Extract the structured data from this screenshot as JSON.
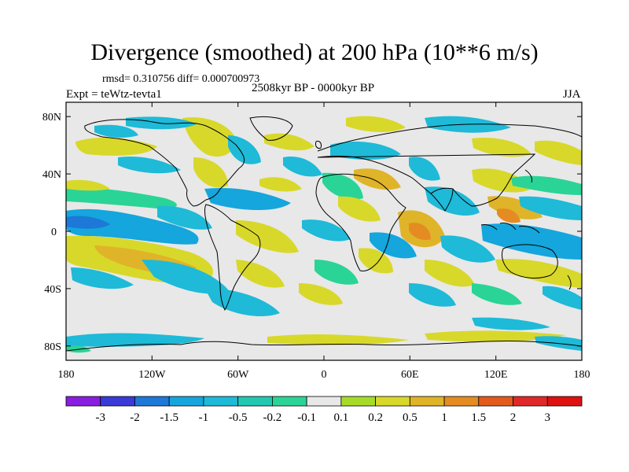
{
  "title": "Divergence (smoothed) at 200 hPa (10**6 m/s)",
  "stats": "rmsd= 0.310756 diff= 0.000700973",
  "experiment": "Expt = teWtz-tevta1",
  "period": "2508kyr BP - 0000kyr BP",
  "season": "JJA",
  "lat_ticks": [
    "80N",
    "40N",
    "0",
    "40S",
    "80S"
  ],
  "lon_ticks": [
    "180",
    "120W",
    "60W",
    "0",
    "60E",
    "120E",
    "180"
  ],
  "colorbar": {
    "labels": [
      "-3",
      "-2",
      "-1.5",
      "-1",
      "-0.5",
      "-0.2",
      "-0.1",
      "0.1",
      "0.2",
      "0.5",
      "1",
      "1.5",
      "2",
      "3"
    ],
    "colors": [
      "#8a1ee0",
      "#3a3ad8",
      "#1e78d8",
      "#14a6dc",
      "#1ebad8",
      "#22c8b0",
      "#2ad496",
      "#e8e8e8",
      "#a6dc28",
      "#d8d82a",
      "#e0b428",
      "#e48c22",
      "#e45a1e",
      "#e0282a",
      "#e01010"
    ]
  },
  "colors": {
    "neutral": "#e8e8e8",
    "cyan": "#1ebad8",
    "blue": "#14a6dc",
    "teal": "#2ad496",
    "green": "#a6dc28",
    "yellow": "#d8d82a",
    "orange": "#e0b428",
    "red": "#e48c22"
  }
}
